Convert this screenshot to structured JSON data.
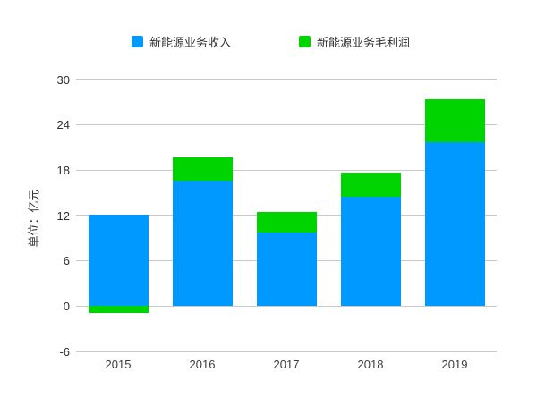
{
  "legend": [
    {
      "label": "新能源业务收入",
      "color": "#0099ff"
    },
    {
      "label": "新能源业务毛利润",
      "color": "#00d400"
    }
  ],
  "y_axis_title": "单位：亿元",
  "chart_data": {
    "type": "bar",
    "stacked": true,
    "title": "",
    "xlabel": "",
    "ylabel": "单位：亿元",
    "categories": [
      "2015",
      "2016",
      "2017",
      "2018",
      "2019"
    ],
    "series": [
      {
        "name": "新能源业务收入",
        "color": "#0099ff",
        "values": [
          12.1,
          16.6,
          9.8,
          14.5,
          21.7
        ]
      },
      {
        "name": "新能源业务毛利润",
        "color": "#00d400",
        "values": [
          -0.9,
          3.1,
          2.7,
          3.2,
          5.7
        ]
      }
    ],
    "ylim": [
      -6,
      30
    ],
    "yticks": [
      30,
      24,
      18,
      12,
      6,
      0,
      -6
    ],
    "grid": true,
    "gridline_color": "#c9c9c9",
    "legend_position": "top"
  }
}
